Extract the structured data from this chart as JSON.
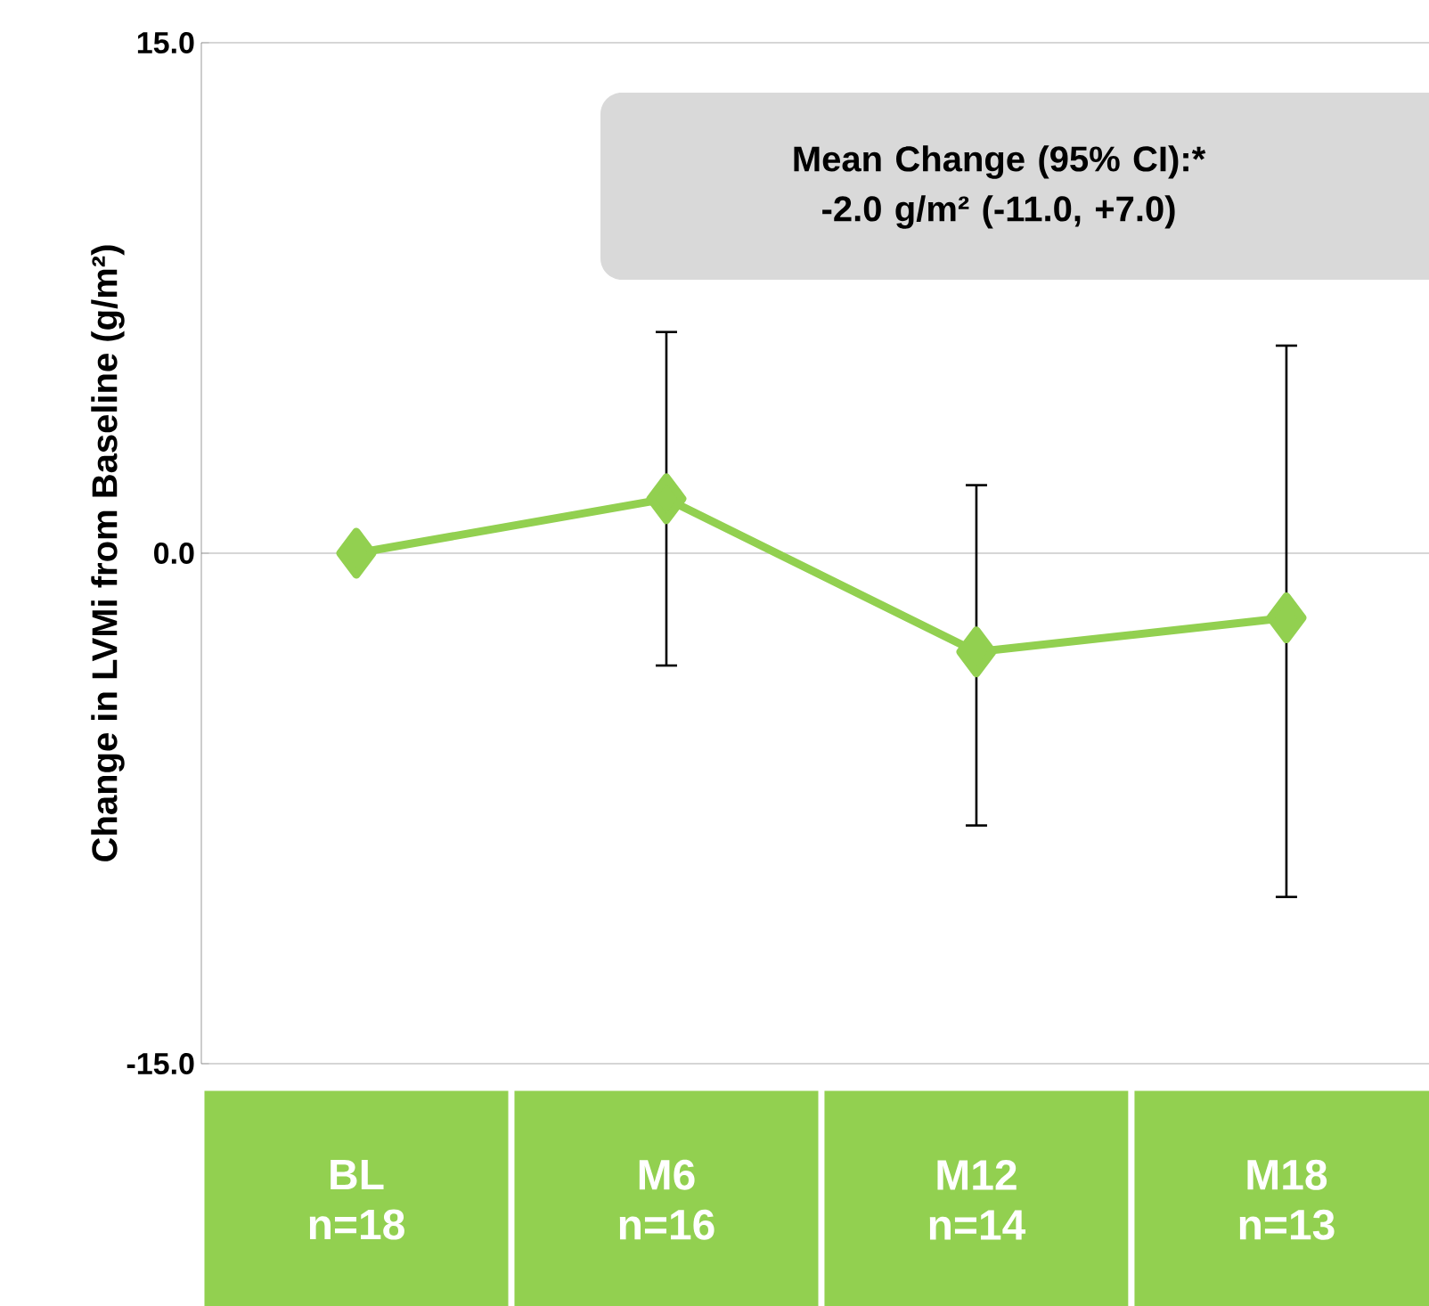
{
  "chart_data": {
    "type": "line",
    "ylabel": "Change in LVMi from Baseline (g/m²)",
    "categories": [
      "BL n=18",
      "M6 n=16",
      "M12 n=14",
      "M18 n=13"
    ],
    "series": [
      {
        "color": "#92d050",
        "values": [
          0,
          1.6,
          -2.9,
          -1.9
        ],
        "errors": [
          null,
          [
            -3.3,
            6.5
          ],
          [
            -8.0,
            2.0
          ],
          [
            -10.1,
            6.1
          ]
        ]
      }
    ],
    "ylim": [
      -15,
      15
    ],
    "yticks": [
      {
        "value": -15,
        "label": "-15.0"
      },
      {
        "value": 0,
        "label": "0.0"
      },
      {
        "value": 15,
        "label": "15.0"
      }
    ],
    "grid": "y",
    "marker": "diamond",
    "line_style": "solid",
    "annotations": [
      "Mean Change (95% CI):*",
      "-2.0 g/m² (-11.0, +7.0)"
    ]
  }
}
